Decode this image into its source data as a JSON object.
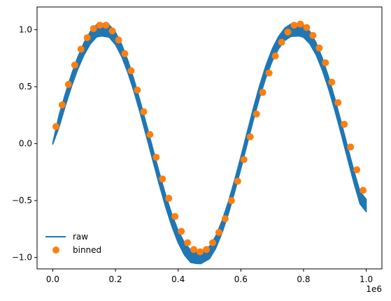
{
  "chart_data": {
    "type": "line",
    "title": "",
    "xlabel": "",
    "ylabel": "",
    "x_offset_label": "1e6",
    "xlim": [
      -0.05,
      1.05
    ],
    "ylim": [
      -1.1,
      1.2
    ],
    "x_unit_multiplier": 1000000,
    "x_ticks": [
      0.0,
      0.2,
      0.4,
      0.6,
      0.8,
      1.0
    ],
    "x_tick_labels": [
      "0.0",
      "0.2",
      "0.4",
      "0.6",
      "0.8",
      "1.0"
    ],
    "y_ticks": [
      -1.0,
      -0.5,
      0.0,
      0.5,
      1.0
    ],
    "y_tick_labels": [
      "−1.0",
      "−0.5",
      "0.0",
      "0.5",
      "1.0"
    ],
    "grid": false,
    "legend_position": "lower-left",
    "series": [
      {
        "name": "raw",
        "kind": "line",
        "color": "#1f77b4",
        "band_halfwidth": 0.055,
        "x": [
          0.0,
          0.02,
          0.04,
          0.06,
          0.08,
          0.1,
          0.12,
          0.14,
          0.157,
          0.18,
          0.2,
          0.22,
          0.24,
          0.26,
          0.28,
          0.3,
          0.32,
          0.34,
          0.36,
          0.38,
          0.4,
          0.42,
          0.44,
          0.46,
          0.472,
          0.5,
          0.52,
          0.54,
          0.56,
          0.58,
          0.6,
          0.62,
          0.64,
          0.66,
          0.68,
          0.7,
          0.72,
          0.74,
          0.76,
          0.786,
          0.8,
          0.82,
          0.84,
          0.86,
          0.88,
          0.9,
          0.92,
          0.94,
          0.96,
          0.98,
          1.0
        ],
        "y": [
          0.0,
          0.196,
          0.383,
          0.556,
          0.708,
          0.834,
          0.93,
          0.991,
          1.0,
          0.989,
          0.924,
          0.817,
          0.674,
          0.502,
          0.309,
          0.104,
          -0.104,
          -0.309,
          -0.502,
          -0.674,
          -0.817,
          -0.924,
          -0.989,
          -0.999,
          -1.0,
          -0.957,
          -0.866,
          -0.731,
          -0.566,
          -0.375,
          -0.169,
          0.046,
          0.26,
          0.458,
          0.633,
          0.777,
          0.885,
          0.96,
          0.996,
          1.0,
          0.988,
          0.931,
          0.833,
          0.698,
          0.532,
          0.342,
          0.139,
          -0.075,
          -0.284,
          -0.475,
          -0.544
        ]
      },
      {
        "name": "binned",
        "kind": "scatter",
        "color": "#ff7f0e",
        "x": [
          0.01,
          0.03,
          0.05,
          0.07,
          0.09,
          0.11,
          0.13,
          0.15,
          0.17,
          0.19,
          0.21,
          0.23,
          0.25,
          0.27,
          0.29,
          0.31,
          0.33,
          0.35,
          0.37,
          0.39,
          0.41,
          0.43,
          0.45,
          0.47,
          0.49,
          0.51,
          0.53,
          0.55,
          0.57,
          0.59,
          0.61,
          0.63,
          0.65,
          0.67,
          0.69,
          0.71,
          0.73,
          0.75,
          0.77,
          0.79,
          0.81,
          0.83,
          0.85,
          0.87,
          0.89,
          0.91,
          0.93,
          0.95,
          0.97,
          0.99
        ],
        "y": [
          0.15,
          0.34,
          0.52,
          0.69,
          0.83,
          0.93,
          1.01,
          1.04,
          1.04,
          0.99,
          0.91,
          0.79,
          0.64,
          0.47,
          0.28,
          0.08,
          -0.12,
          -0.31,
          -0.48,
          -0.64,
          -0.77,
          -0.87,
          -0.93,
          -0.95,
          -0.93,
          -0.87,
          -0.78,
          -0.66,
          -0.5,
          -0.33,
          -0.14,
          0.06,
          0.26,
          0.45,
          0.62,
          0.77,
          0.89,
          0.98,
          1.04,
          1.05,
          1.02,
          0.95,
          0.84,
          0.71,
          0.54,
          0.36,
          0.17,
          -0.03,
          -0.23,
          -0.41
        ]
      }
    ]
  }
}
